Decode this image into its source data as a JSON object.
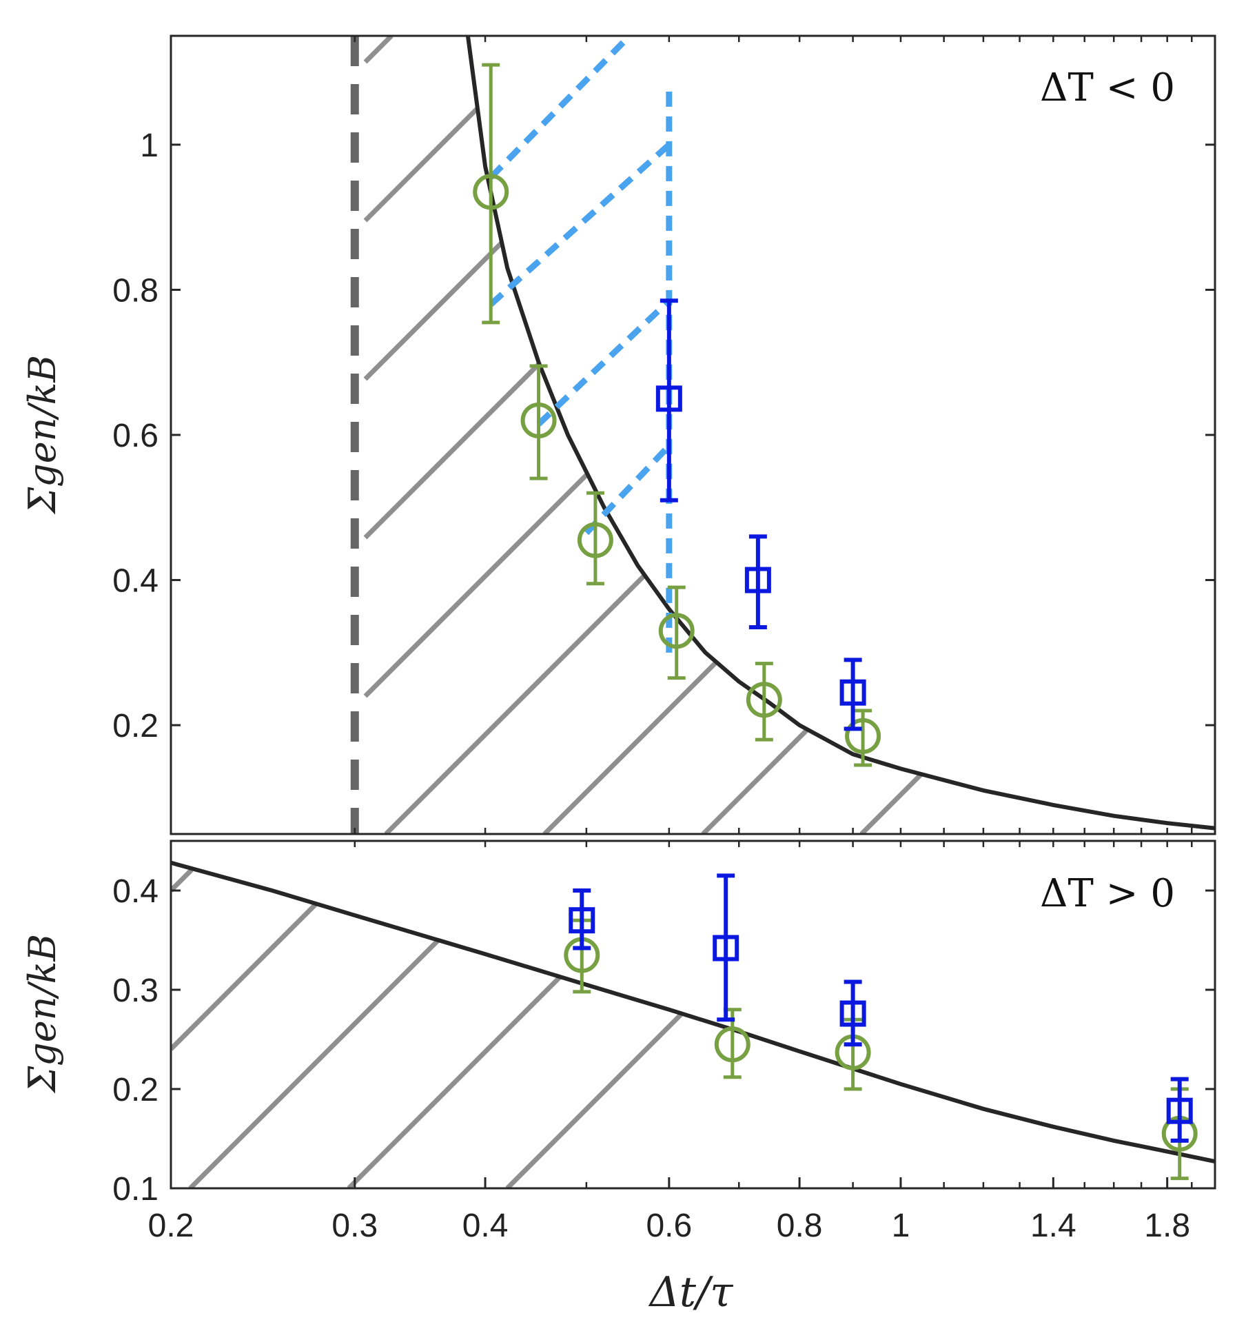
{
  "chart_data": [
    {
      "type": "scatter",
      "panel": "top",
      "annotation": "ΔT < 0",
      "ylabel": "Σgen/kB",
      "xscale": "log",
      "xlim": [
        0.2,
        2.0
      ],
      "ylim": [
        0.05,
        1.15
      ],
      "yticks": [
        0.2,
        0.4,
        0.6,
        0.8,
        1.0
      ],
      "ytick_labels": [
        "0.2",
        "0.4",
        "0.6",
        "0.8",
        "1"
      ],
      "vline_dashed_x": 0.3,
      "bound_curve": {
        "description": "theoretical lower bound",
        "x": [
          0.385,
          0.4,
          0.42,
          0.45,
          0.48,
          0.52,
          0.56,
          0.6,
          0.65,
          0.7,
          0.75,
          0.8,
          0.9,
          1.0,
          1.2,
          1.4,
          1.6,
          1.8,
          2.0
        ],
        "y": [
          1.15,
          0.97,
          0.83,
          0.7,
          0.6,
          0.5,
          0.42,
          0.36,
          0.3,
          0.26,
          0.23,
          0.2,
          0.16,
          0.14,
          0.11,
          0.09,
          0.075,
          0.065,
          0.058
        ]
      },
      "series": [
        {
          "name": "green circles",
          "marker": "circle",
          "color": "#77a043",
          "x": [
            0.405,
            0.45,
            0.51,
            0.61,
            0.74,
            0.92
          ],
          "y": [
            0.935,
            0.62,
            0.455,
            0.33,
            0.235,
            0.185
          ],
          "yerr_low": [
            0.755,
            0.54,
            0.395,
            0.265,
            0.18,
            0.145
          ],
          "yerr_high": [
            1.11,
            0.695,
            0.52,
            0.39,
            0.285,
            0.22
          ]
        },
        {
          "name": "blue squares",
          "marker": "square",
          "color": "#0b18e0",
          "x": [
            0.6,
            0.73,
            0.9
          ],
          "y": [
            0.65,
            0.4,
            0.245
          ],
          "yerr_low": [
            0.51,
            0.335,
            0.195
          ],
          "yerr_high": [
            0.785,
            0.46,
            0.29
          ]
        }
      ],
      "guide_lines": [
        {
          "style": "dotted",
          "color": "#4aa3ef",
          "x": [
            0.6,
            0.6
          ],
          "y": [
            0.3,
            1.08
          ]
        },
        {
          "style": "dotted",
          "color": "#4aa3ef",
          "x": [
            0.405,
            0.55
          ],
          "y": [
            0.955,
            1.15
          ]
        },
        {
          "style": "dotted",
          "color": "#4aa3ef",
          "x": [
            0.405,
            0.6
          ],
          "y": [
            0.78,
            1.0
          ]
        },
        {
          "style": "dotted",
          "color": "#4aa3ef",
          "x": [
            0.45,
            0.6
          ],
          "y": [
            0.615,
            0.785
          ]
        },
        {
          "style": "dotted",
          "color": "#4aa3ef",
          "x": [
            0.5,
            0.6
          ],
          "y": [
            0.465,
            0.585
          ]
        }
      ]
    },
    {
      "type": "scatter",
      "panel": "bottom",
      "annotation": "ΔT > 0",
      "ylabel": "Σgen/kB",
      "xlabel": "Δt/τ",
      "xscale": "log",
      "xlim": [
        0.2,
        2.0
      ],
      "ylim": [
        0.1,
        0.45
      ],
      "yticks": [
        0.1,
        0.2,
        0.3,
        0.4
      ],
      "ytick_labels": [
        "0.1",
        "0.2",
        "0.3",
        "0.4"
      ],
      "xticks": [
        0.2,
        0.3,
        0.4,
        0.6,
        0.8,
        1.0,
        1.4,
        1.8
      ],
      "xtick_labels": [
        "0.2",
        "0.3",
        "0.4",
        "0.6",
        "0.8",
        "1",
        "1.4",
        "1.8"
      ],
      "bound_curve": {
        "description": "theoretical lower bound",
        "x": [
          0.2,
          0.25,
          0.3,
          0.4,
          0.5,
          0.6,
          0.7,
          0.8,
          1.0,
          1.2,
          1.4,
          1.6,
          1.8,
          2.0
        ],
        "y": [
          0.428,
          0.4,
          0.375,
          0.336,
          0.305,
          0.28,
          0.258,
          0.238,
          0.205,
          0.18,
          0.162,
          0.148,
          0.137,
          0.127
        ]
      },
      "series": [
        {
          "name": "green circles",
          "marker": "circle",
          "color": "#77a043",
          "x": [
            0.495,
            0.69,
            0.9,
            1.85
          ],
          "y": [
            0.335,
            0.245,
            0.237,
            0.155
          ],
          "yerr_low": [
            0.298,
            0.212,
            0.2,
            0.11
          ],
          "yerr_high": [
            0.37,
            0.28,
            0.27,
            0.2
          ]
        },
        {
          "name": "blue squares",
          "marker": "square",
          "color": "#0b18e0",
          "x": [
            0.495,
            0.68,
            0.9,
            1.85
          ],
          "y": [
            0.37,
            0.342,
            0.276,
            0.178
          ],
          "yerr_low": [
            0.342,
            0.27,
            0.245,
            0.148
          ],
          "yerr_high": [
            0.4,
            0.415,
            0.308,
            0.21
          ]
        }
      ]
    }
  ]
}
